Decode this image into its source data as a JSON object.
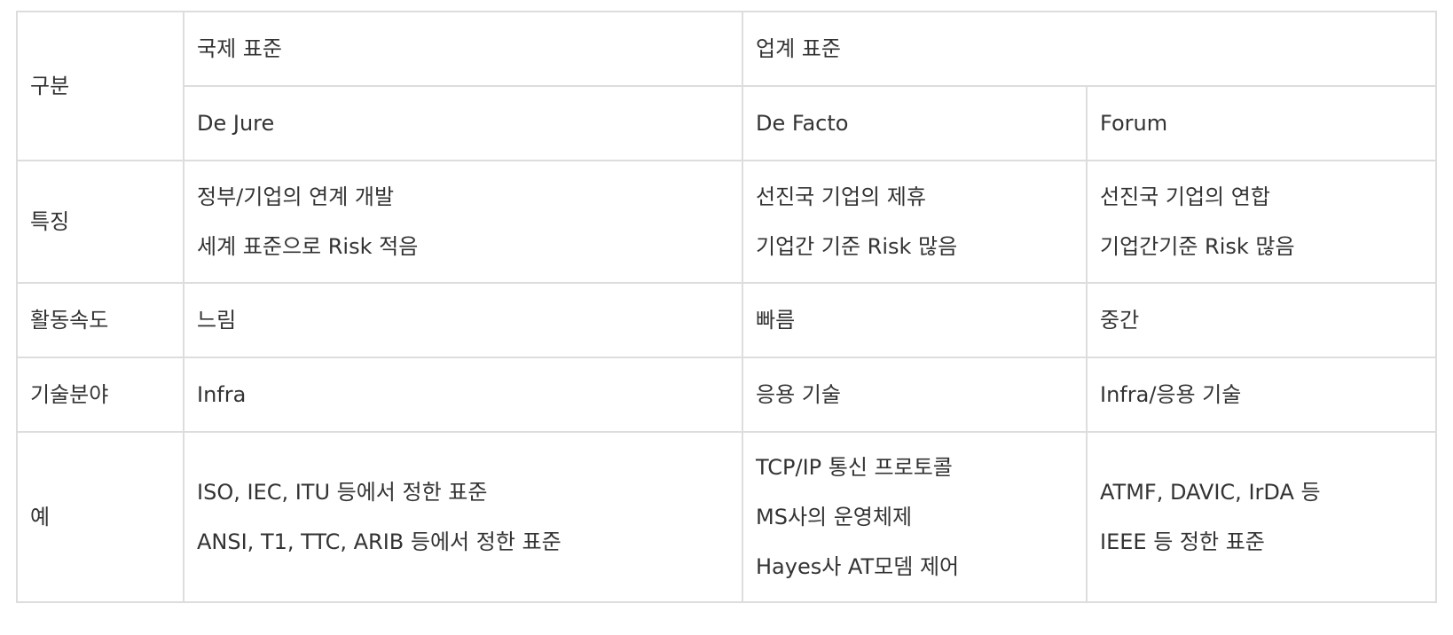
{
  "header": {
    "category": "구분",
    "international": "국제 표준",
    "industry": "업계 표준",
    "de_jure": "De Jure",
    "de_facto": "De Facto",
    "forum": "Forum"
  },
  "rows": [
    {
      "label": "특징",
      "de_jure": [
        "정부/기업의 연계 개발",
        "세계 표준으로 Risk 적음"
      ],
      "de_facto": [
        "선진국 기업의 제휴",
        "기업간 기준 Risk 많음"
      ],
      "forum": [
        "선진국 기업의 연합",
        "기업간기준 Risk 많음"
      ]
    },
    {
      "label": "활동속도",
      "de_jure": [
        "느림"
      ],
      "de_facto": [
        "빠름"
      ],
      "forum": [
        "중간"
      ]
    },
    {
      "label": "기술분야",
      "de_jure": [
        "Infra"
      ],
      "de_facto": [
        "응용 기술"
      ],
      "forum": [
        "Infra/응용 기술"
      ]
    },
    {
      "label": "예",
      "de_jure": [
        "ISO, IEC, ITU 등에서 정한 표준",
        "ANSI, T1, TTC, ARIB 등에서 정한 표준"
      ],
      "de_facto": [
        "TCP/IP 통신 프로토콜",
        "MS사의 운영체제",
        "Hayes사 AT모뎀 제어"
      ],
      "forum": [
        "ATMF, DAVIC, IrDA 등",
        "IEEE 등 정한 표준"
      ]
    }
  ]
}
